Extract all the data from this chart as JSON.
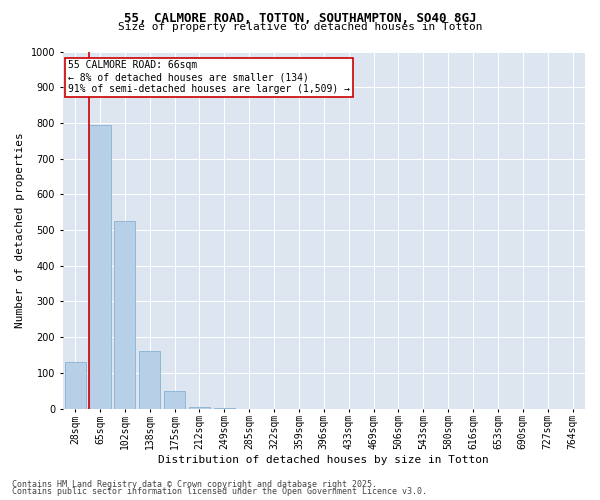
{
  "title_line1": "55, CALMORE ROAD, TOTTON, SOUTHAMPTON, SO40 8GJ",
  "title_line2": "Size of property relative to detached houses in Totton",
  "xlabel": "Distribution of detached houses by size in Totton",
  "ylabel": "Number of detached properties",
  "categories": [
    "28sqm",
    "65sqm",
    "102sqm",
    "138sqm",
    "175sqm",
    "212sqm",
    "249sqm",
    "285sqm",
    "322sqm",
    "359sqm",
    "396sqm",
    "433sqm",
    "469sqm",
    "506sqm",
    "543sqm",
    "580sqm",
    "616sqm",
    "653sqm",
    "690sqm",
    "727sqm",
    "764sqm"
  ],
  "values": [
    130,
    795,
    525,
    160,
    50,
    5,
    2,
    0,
    0,
    0,
    0,
    0,
    0,
    0,
    0,
    0,
    0,
    0,
    0,
    0,
    0
  ],
  "bar_color": "#b8cfe8",
  "bar_edge_color": "#7aaad0",
  "highlight_line_color": "#cc0000",
  "annotation_text": "55 CALMORE ROAD: 66sqm\n← 8% of detached houses are smaller (134)\n91% of semi-detached houses are larger (1,509) →",
  "annotation_box_facecolor": "#ffffff",
  "annotation_box_edgecolor": "#cc0000",
  "ylim": [
    0,
    1000
  ],
  "bg_color": "#dde6f0",
  "grid_color": "#ffffff",
  "footer_line1": "Contains HM Land Registry data © Crown copyright and database right 2025.",
  "footer_line2": "Contains public sector information licensed under the Open Government Licence v3.0.",
  "title_fontsize": 9,
  "subtitle_fontsize": 8,
  "axis_label_fontsize": 8,
  "tick_fontsize": 7,
  "annotation_fontsize": 7,
  "footer_fontsize": 6
}
